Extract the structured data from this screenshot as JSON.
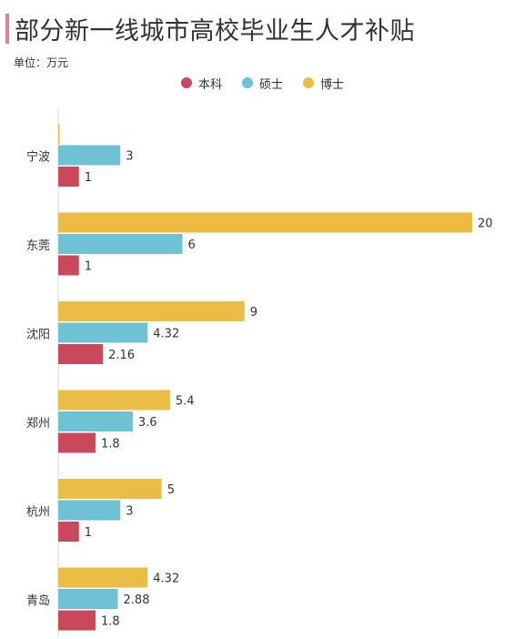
{
  "title": "部分新一线城市高校毕业生人才补贴",
  "unit_label": "单位：万元",
  "colors": {
    "accent_bar": "#d5868f"
  },
  "chart_data": {
    "type": "bar",
    "orientation": "horizontal",
    "categories": [
      "宁波",
      "东莞",
      "沈阳",
      "郑州",
      "杭州",
      "青岛"
    ],
    "series": [
      {
        "name": "本科",
        "color": "#c9485b",
        "values": [
          1,
          1,
          2.16,
          1.8,
          1,
          1.8
        ]
      },
      {
        "name": "硕士",
        "color": "#6ec2d4",
        "values": [
          3,
          6,
          4.32,
          3.6,
          3,
          2.88
        ]
      },
      {
        "name": "博士",
        "color": "#ecbd45",
        "values": [
          null,
          20,
          9,
          5.4,
          5,
          4.32
        ]
      }
    ],
    "xlim": [
      0,
      20
    ],
    "legend_position": "top-center",
    "grid": false
  }
}
